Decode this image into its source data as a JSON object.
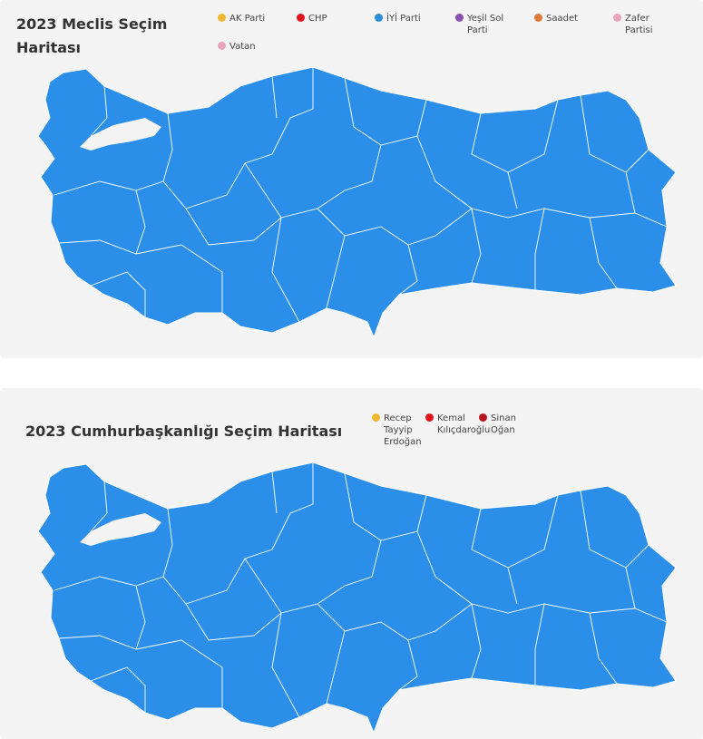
{
  "colors": {
    "map_fill": "#2b8fea",
    "background": "#f4f4f4"
  },
  "parliament": {
    "title_line1": "2023 Meclis Seçim",
    "title_line2": "Haritası",
    "legend": [
      {
        "label": "AK Parti",
        "color": "#f0b830"
      },
      {
        "label": "CHP",
        "color": "#e0141e"
      },
      {
        "label": "İYİ Parti",
        "color": "#2b8fd6"
      },
      {
        "label": "Yeşil Sol Parti",
        "color": "#8a4fb0"
      },
      {
        "label": "Saadet",
        "color": "#e07a3a"
      },
      {
        "label": "Zafer Partisi",
        "color": "#e8a4bc"
      },
      {
        "label": "Vatan",
        "color": "#e8a4bc"
      }
    ]
  },
  "presidential": {
    "title": "2023 Cumhurbaşkanlığı Seçim Haritası",
    "legend": [
      {
        "label": "Recep Tayyip Erdoğan",
        "color": "#f0b830"
      },
      {
        "label": "Kemal Kılıçdaroğlu",
        "color": "#e0141e"
      },
      {
        "label": "Sinan Oğan",
        "color": "#b8141e"
      }
    ]
  }
}
